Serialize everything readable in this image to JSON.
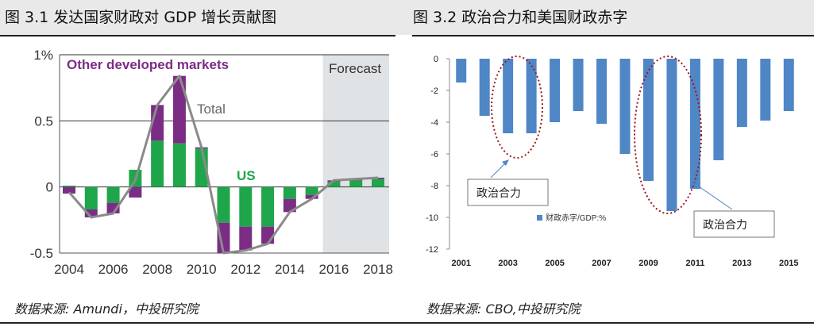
{
  "left_figure": {
    "title": "图 3.1 发达国家财政对 GDP 增长贡献图",
    "source": "数据来源: Amundi，中投研究院"
  },
  "right_figure": {
    "title": "图 3.2 政治合力和美国财政赤字",
    "source": "数据来源: CBO,中投研究院"
  },
  "colors": {
    "other_developed": "#7b2d86",
    "us": "#1fa64a",
    "total_line": "#8a8a8a",
    "forecast_shade": "#dfe3e6",
    "deficit_bar": "#4f86c6",
    "annotation_ellipse": "#a0151a",
    "arrow": "#4f86c6"
  },
  "chart_data": [
    {
      "type": "bar",
      "stacked": true,
      "title": "",
      "xlabel": "",
      "ylabel": "",
      "ylim": [
        -0.5,
        1.0
      ],
      "y_tick_labels": [
        "1%",
        "0.5",
        "0",
        "-0.5"
      ],
      "y_tick_values": [
        1.0,
        0.5,
        0,
        -0.5
      ],
      "x_tick_labels": [
        "2004",
        "2006",
        "2008",
        "2010",
        "2012",
        "2014",
        "2016",
        "2018"
      ],
      "years": [
        2004,
        2005,
        2006,
        2007,
        2008,
        2009,
        2010,
        2011,
        2012,
        2013,
        2014,
        2015,
        2016,
        2017,
        2018
      ],
      "grid": true,
      "series": [
        {
          "name": "US",
          "values": [
            0.01,
            -0.17,
            -0.12,
            0.13,
            0.35,
            0.33,
            0.29,
            -0.27,
            -0.3,
            -0.3,
            -0.09,
            -0.06,
            0.04,
            0.05,
            0.06
          ]
        },
        {
          "name": "Other developed markets",
          "values": [
            -0.05,
            -0.06,
            -0.08,
            -0.08,
            0.27,
            0.51,
            0.01,
            -0.23,
            -0.18,
            -0.13,
            -0.1,
            -0.03,
            0.01,
            0.01,
            0.01
          ]
        }
      ],
      "total_line": {
        "name": "Total",
        "values": [
          -0.04,
          -0.23,
          -0.2,
          0.05,
          0.62,
          0.84,
          0.3,
          -0.5,
          -0.48,
          -0.43,
          -0.19,
          -0.09,
          0.05,
          0.06,
          0.07
        ]
      },
      "annotations": {
        "other_label": "Other developed markets",
        "total_label": "Total",
        "us_label": "US",
        "forecast_label": "Forecast",
        "forecast_from_year": 2015.5
      }
    },
    {
      "type": "bar",
      "title": "",
      "xlabel": "",
      "ylabel": "",
      "ylim": [
        -12,
        0
      ],
      "y_tick_values": [
        0,
        -2,
        -4,
        -6,
        -8,
        -10,
        -12
      ],
      "y_tick_labels": [
        "0",
        "-2",
        "-4",
        "-6",
        "-8",
        "-10",
        "-12"
      ],
      "x_tick_labels": [
        "2001",
        "2003",
        "2005",
        "2007",
        "2009",
        "2011",
        "2013",
        "2015"
      ],
      "categories": [
        "2001",
        "2002",
        "2003",
        "2004",
        "2005",
        "2006",
        "2007",
        "2008",
        "2009",
        "2010",
        "2011",
        "2012",
        "2013",
        "2014",
        "2015"
      ],
      "series": [
        {
          "name": "财政赤字/GDP:%",
          "values": [
            -1.5,
            -3.6,
            -4.7,
            -4.7,
            -4.0,
            -3.3,
            -4.1,
            -6.0,
            -7.7,
            -9.6,
            -8.2,
            -6.4,
            -4.3,
            -3.9,
            -3.3
          ]
        }
      ],
      "legend_label": "财政赤字/GDP:%",
      "legend_position": "middle-left",
      "annotations": {
        "box_label_1": "政治合力",
        "box_label_2": "政治合力"
      }
    }
  ]
}
